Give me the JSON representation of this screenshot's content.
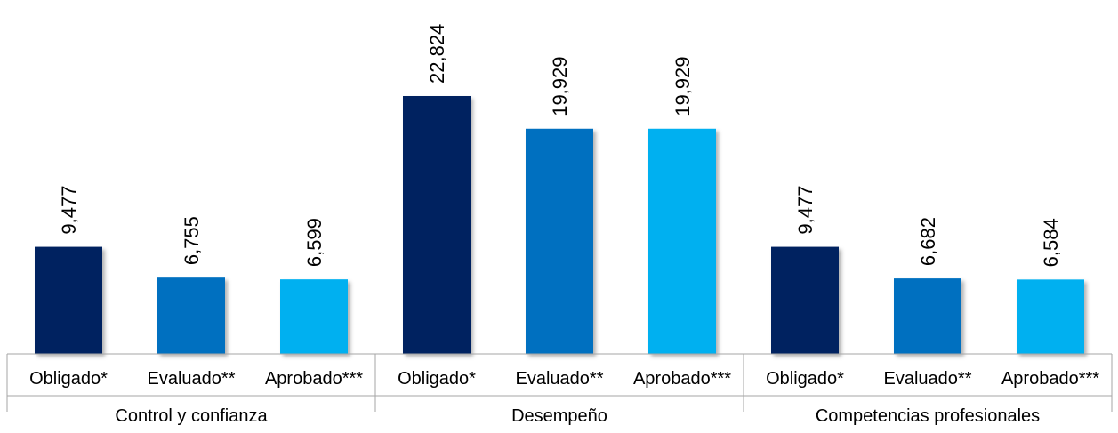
{
  "chart_data": {
    "type": "bar",
    "groups": [
      {
        "name": "Control y confianza",
        "bars": [
          {
            "label": "Obligado*",
            "value": 9477,
            "display": "9,477"
          },
          {
            "label": "Evaluado**",
            "value": 6755,
            "display": "6,755"
          },
          {
            "label": "Aprobado***",
            "value": 6599,
            "display": "6,599"
          }
        ]
      },
      {
        "name": "Desempeño",
        "bars": [
          {
            "label": "Obligado*",
            "value": 22824,
            "display": "22,824"
          },
          {
            "label": "Evaluado**",
            "value": 19929,
            "display": "19,929"
          },
          {
            "label": "Aprobado***",
            "value": 19929,
            "display": "19,929"
          }
        ]
      },
      {
        "name": "Competencias profesionales",
        "bars": [
          {
            "label": "Obligado*",
            "value": 9477,
            "display": "9,477"
          },
          {
            "label": "Evaluado**",
            "value": 6682,
            "display": "6,682"
          },
          {
            "label": "Aprobado***",
            "value": 6584,
            "display": "6,584"
          }
        ]
      }
    ],
    "colors": [
      "#002060",
      "#0070c0",
      "#00b0f0"
    ],
    "ylim": [
      0,
      22824
    ],
    "grid": false,
    "legend": "none"
  }
}
